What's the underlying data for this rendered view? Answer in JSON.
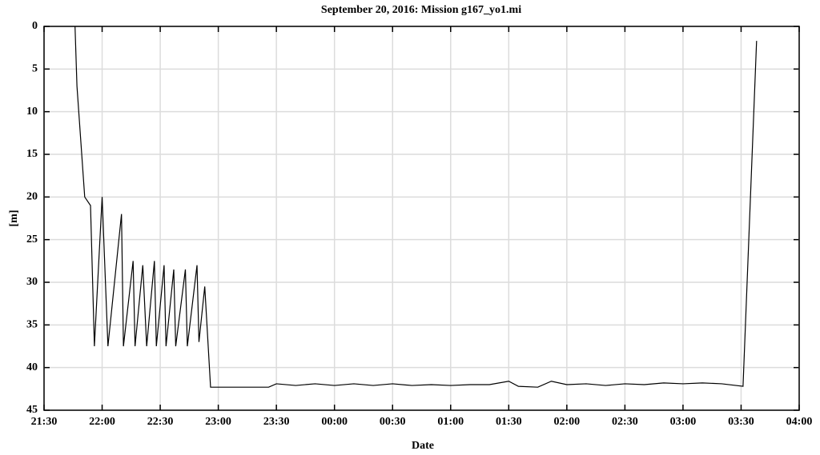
{
  "chart_data": {
    "type": "line",
    "title": "September 20, 2016: Mission g167_yo1.mi",
    "x_label": "Date",
    "y_label": "[m]",
    "x": [
      "21:46",
      "21:47",
      "21:51",
      "21:54",
      "21:56",
      "22:00",
      "22:03",
      "22:10",
      "22:11",
      "22:16",
      "22:17",
      "22:21",
      "22:23",
      "22:27",
      "22:28",
      "22:32",
      "22:33",
      "22:37",
      "22:38",
      "22:43",
      "22:44",
      "22:49",
      "22:50",
      "22:53",
      "22:56",
      "23:26",
      "23:30",
      "23:40",
      "23:50",
      "00:00",
      "00:10",
      "00:20",
      "00:30",
      "00:40",
      "00:50",
      "01:00",
      "01:10",
      "01:20",
      "01:30",
      "01:35",
      "01:45",
      "01:52",
      "02:00",
      "02:10",
      "02:20",
      "02:30",
      "02:40",
      "02:50",
      "03:00",
      "03:10",
      "03:20",
      "03:31",
      "03:38"
    ],
    "values": [
      0,
      7,
      20,
      21,
      37.5,
      20,
      37.5,
      22,
      37.5,
      27.5,
      37.5,
      28,
      37.5,
      27.5,
      37.5,
      28,
      37.5,
      28.5,
      37.5,
      28.5,
      37.5,
      28,
      37,
      30.5,
      42.3,
      42.3,
      41.9,
      42.1,
      41.9,
      42.1,
      41.9,
      42.1,
      41.9,
      42.1,
      42,
      42.1,
      42,
      42,
      41.6,
      42.2,
      42.3,
      41.6,
      42,
      41.9,
      42.1,
      41.9,
      42,
      41.8,
      41.9,
      41.8,
      41.9,
      42.2,
      1.7
    ],
    "color": "#000000",
    "xlim": [
      "21:30",
      "04:00"
    ],
    "xticks": [
      "21:30",
      "22:00",
      "22:30",
      "23:00",
      "23:30",
      "00:00",
      "00:30",
      "01:00",
      "01:30",
      "02:00",
      "02:30",
      "03:00",
      "03:30",
      "04:00"
    ],
    "ylim": [
      0,
      45
    ],
    "yticks": [
      0,
      5,
      10,
      15,
      20,
      25,
      30,
      35,
      40,
      45
    ],
    "y_reversed": true,
    "grid": true
  }
}
